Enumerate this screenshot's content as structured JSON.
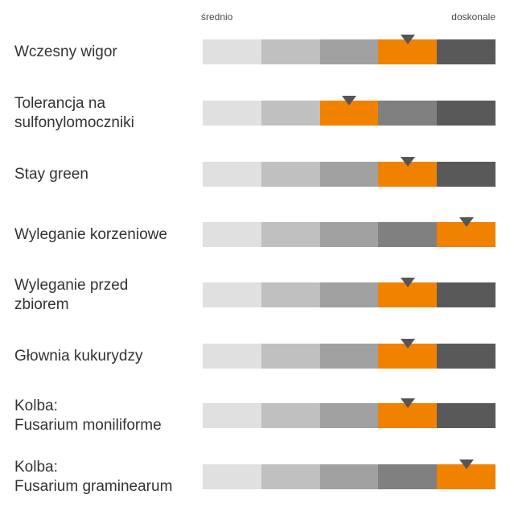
{
  "chart_data": {
    "type": "rating-scale",
    "scale_labels": {
      "left": "średnio",
      "right": "doskonale"
    },
    "levels": 5,
    "segment_colors": [
      "#e0e0e0",
      "#c0c0c0",
      "#a0a0a0",
      "#808080",
      "#595959"
    ],
    "highlight_color": "#f08200",
    "marker_color": "#555555",
    "items": [
      {
        "label": "Wczesny wigor",
        "level": 4
      },
      {
        "label": "Tolerancja na\nsulfonylomoczniki",
        "level": 3
      },
      {
        "label": "Stay green",
        "level": 4
      },
      {
        "label": "Wyleganie korzeniowe",
        "level": 5
      },
      {
        "label": "Wyleganie przed\nzbiorem",
        "level": 4
      },
      {
        "label": "Głownia kukurydzy",
        "level": 4
      },
      {
        "label": "Kolba:\nFusarium moniliforme",
        "level": 4
      },
      {
        "label": "Kolba:\nFusarium graminearum",
        "level": 5
      }
    ]
  }
}
